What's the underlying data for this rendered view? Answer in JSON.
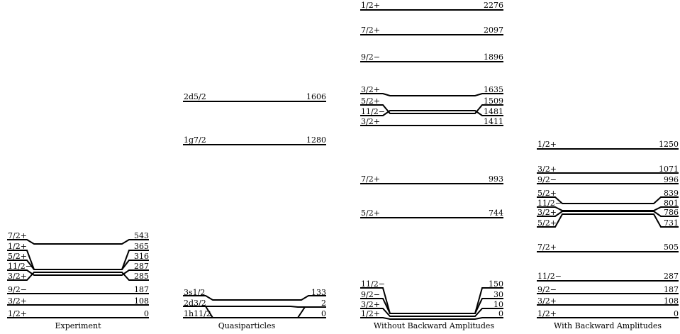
{
  "columns": [
    {
      "caption": "Experiment",
      "levels": [
        {
          "label": "1/2+",
          "value": "0"
        },
        {
          "label": "3/2+",
          "value": "108"
        },
        {
          "label": "9/2−",
          "value": "187"
        },
        {
          "label": "3/2+",
          "value": "285"
        },
        {
          "label": "11/2−",
          "value": "287"
        },
        {
          "label": "5/2+",
          "value": "316"
        },
        {
          "label": "1/2+",
          "value": "365"
        },
        {
          "label": "7/2+",
          "value": "543"
        }
      ]
    },
    {
      "caption": "Quasiparticles",
      "levels": [
        {
          "label": "1h11/2",
          "value": "0"
        },
        {
          "label": "2d3/2",
          "value": "2"
        },
        {
          "label": "3s1/2",
          "value": "133"
        },
        {
          "label": "1g7/2",
          "value": "1280"
        },
        {
          "label": "2d5/2",
          "value": "1606"
        }
      ]
    },
    {
      "caption": "Without Backward Amplitudes",
      "levels": [
        {
          "label": "1/2+",
          "value": "0"
        },
        {
          "label": "3/2+",
          "value": "10"
        },
        {
          "label": "9/2−",
          "value": "30"
        },
        {
          "label": "11/2−",
          "value": "150"
        },
        {
          "label": "5/2+",
          "value": "744"
        },
        {
          "label": "7/2+",
          "value": "993"
        },
        {
          "label": "3/2+",
          "value": "1411"
        },
        {
          "label": "11/2−",
          "value": "1481"
        },
        {
          "label": "5/2+",
          "value": "1509"
        },
        {
          "label": "3/2+",
          "value": "1635"
        },
        {
          "label": "9/2−",
          "value": "1896"
        },
        {
          "label": "7/2+",
          "value": "2097"
        },
        {
          "label": "1/2+",
          "value": "2276"
        }
      ]
    },
    {
      "caption": "With Backward Amplitudes",
      "levels": [
        {
          "label": "1/2+",
          "value": "0"
        },
        {
          "label": "3/2+",
          "value": "108"
        },
        {
          "label": "9/2−",
          "value": "187"
        },
        {
          "label": "11/2−",
          "value": "287"
        },
        {
          "label": "7/2+",
          "value": "505"
        },
        {
          "label": "5/2+",
          "value": "731"
        },
        {
          "label": "3/2+",
          "value": "786"
        },
        {
          "label": "11/2−",
          "value": "801"
        },
        {
          "label": "5/2+",
          "value": "839"
        },
        {
          "label": "9/2−",
          "value": "996"
        },
        {
          "label": "3/2+",
          "value": "1071"
        },
        {
          "label": "1/2+",
          "value": "1250"
        }
      ]
    }
  ]
}
